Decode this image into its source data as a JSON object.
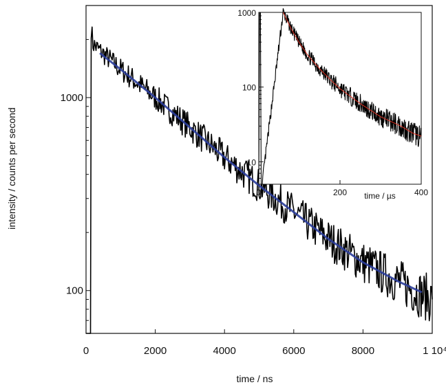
{
  "chart_data": [
    {
      "type": "line",
      "title": "",
      "xlabel": "time / ns",
      "ylabel": "intensity / counts per second",
      "xlim": [
        0,
        10000
      ],
      "ylim": [
        60,
        3000
      ],
      "yscale": "log",
      "grid": false,
      "x_ticks": [
        0,
        2000,
        4000,
        6000,
        8000,
        10000
      ],
      "x_tick_labels": [
        "0",
        "2000",
        "4000",
        "6000",
        "8000",
        "1 10⁴"
      ],
      "y_ticks": [
        100,
        1000
      ],
      "y_tick_labels": [
        "100",
        "1000"
      ],
      "series": [
        {
          "role": "data",
          "color": "#000000",
          "x": [
            0,
            60,
            110,
            150,
            200,
            400,
            1000,
            2000,
            3000,
            4000,
            5000,
            6000,
            7000,
            8000,
            9000,
            9700,
            10000
          ],
          "y": [
            0,
            0,
            0,
            2300,
            1900,
            1750,
            1400,
            1000,
            700,
            490,
            350,
            255,
            185,
            140,
            112,
            95,
            90
          ]
        },
        {
          "role": "fit",
          "color": "#2b3d9a",
          "x": [
            400,
            1000,
            2000,
            3000,
            4000,
            5000,
            6000,
            7000,
            8000,
            9000,
            9700
          ],
          "y": [
            1700,
            1400,
            1000,
            700,
            490,
            350,
            255,
            185,
            140,
            112,
            98
          ]
        }
      ]
    },
    {
      "type": "line",
      "title": "",
      "xlabel": "time / µs",
      "ylabel": "",
      "xlim": [
        0,
        400
      ],
      "ylim": [
        5,
        1000
      ],
      "yscale": "log",
      "grid": false,
      "x_ticks": [
        0,
        200,
        400
      ],
      "x_tick_labels": [
        "0",
        "200",
        "400"
      ],
      "y_ticks": [
        10,
        100,
        1000
      ],
      "y_tick_labels": [
        "10",
        "100",
        "1000"
      ],
      "series": [
        {
          "role": "data",
          "color": "#000000",
          "x": [
            0,
            2,
            4,
            6,
            8,
            60,
            80,
            100,
            120,
            150,
            180,
            200,
            250,
            300,
            350,
            380,
            400
          ],
          "y": [
            5,
            1000,
            1000,
            5,
            5,
            1000,
            600,
            390,
            270,
            175,
            120,
            95,
            60,
            40,
            30,
            24,
            22
          ]
        },
        {
          "role": "fit",
          "color": "#e03020",
          "x": [
            60,
            80,
            100,
            120,
            150,
            180,
            200,
            250,
            300,
            350,
            380,
            400
          ],
          "y": [
            1000,
            600,
            390,
            270,
            175,
            120,
            95,
            60,
            40,
            30,
            24,
            22
          ]
        }
      ]
    }
  ]
}
